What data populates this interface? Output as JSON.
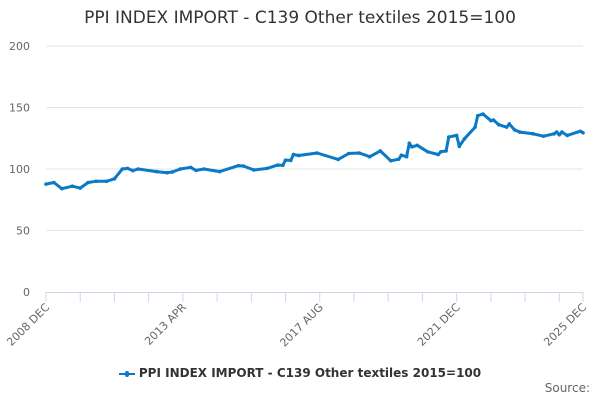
{
  "chart_data": {
    "type": "line",
    "title": "PPI INDEX IMPORT - C139 Other textiles 2015=100",
    "xlabel": "",
    "ylabel": "",
    "ylim": [
      0,
      200
    ],
    "yticks": [
      0,
      50,
      100,
      150,
      200
    ],
    "xrange": [
      "2008-12",
      "2025-12"
    ],
    "xtick_labels": [
      "2008 DEC",
      "2013 APR",
      "2017 AUG",
      "2021 DEC",
      "2025 DEC"
    ],
    "grid": "horizontal",
    "legend_position": "bottom",
    "color": "#0a7ac6",
    "series": [
      {
        "name": "PPI INDEX IMPORT - C139 Other textiles 2015=100",
        "points": [
          [
            "2008-12",
            87.7
          ],
          [
            "2009-03",
            89
          ],
          [
            "2009-06",
            84
          ],
          [
            "2009-10",
            86
          ],
          [
            "2010-01",
            84.5
          ],
          [
            "2010-04",
            89
          ],
          [
            "2010-07",
            90
          ],
          [
            "2010-11",
            90
          ],
          [
            "2011-02",
            92
          ],
          [
            "2011-05",
            100
          ],
          [
            "2011-07",
            100.5
          ],
          [
            "2011-09",
            98.7
          ],
          [
            "2011-11",
            100
          ],
          [
            "2012-06",
            97.9
          ],
          [
            "2012-10",
            97
          ],
          [
            "2012-12",
            97.6
          ],
          [
            "2013-03",
            100
          ],
          [
            "2013-07",
            101.3
          ],
          [
            "2013-09",
            98.9
          ],
          [
            "2013-12",
            100
          ],
          [
            "2014-06",
            97.9
          ],
          [
            "2015-01",
            102.7
          ],
          [
            "2015-03",
            102.4
          ],
          [
            "2015-07",
            99.2
          ],
          [
            "2015-12",
            100.5
          ],
          [
            "2016-04",
            103.2
          ],
          [
            "2016-06",
            103
          ],
          [
            "2016-07",
            107.2
          ],
          [
            "2016-09",
            107
          ],
          [
            "2016-10",
            111.8
          ],
          [
            "2016-12",
            111
          ],
          [
            "2017-07",
            113
          ],
          [
            "2018-03",
            107.8
          ],
          [
            "2018-07",
            112.6
          ],
          [
            "2018-11",
            113
          ],
          [
            "2019-03",
            110
          ],
          [
            "2019-07",
            114.7
          ],
          [
            "2019-11",
            106.7
          ],
          [
            "2020-02",
            108
          ],
          [
            "2020-03",
            111.2
          ],
          [
            "2020-05",
            110
          ],
          [
            "2020-06",
            121
          ],
          [
            "2020-07",
            118
          ],
          [
            "2020-09",
            119.3
          ],
          [
            "2021-01",
            114
          ],
          [
            "2021-05",
            111.8
          ],
          [
            "2021-06",
            114
          ],
          [
            "2021-08",
            114.7
          ],
          [
            "2021-09",
            126
          ],
          [
            "2021-12",
            127.3
          ],
          [
            "2022-01",
            118.4
          ],
          [
            "2022-03",
            124.6
          ],
          [
            "2022-07",
            134
          ],
          [
            "2022-08",
            143.3
          ],
          [
            "2022-10",
            144.7
          ],
          [
            "2023-01",
            139.3
          ],
          [
            "2023-02",
            139.8
          ],
          [
            "2023-04",
            136
          ],
          [
            "2023-07",
            134
          ],
          [
            "2023-08",
            136.6
          ],
          [
            "2023-10",
            131.8
          ],
          [
            "2023-12",
            130
          ],
          [
            "2024-05",
            128.6
          ],
          [
            "2024-09",
            126.7
          ],
          [
            "2025-01",
            128.6
          ],
          [
            "2025-02",
            130
          ],
          [
            "2025-03",
            127.8
          ],
          [
            "2025-04",
            130
          ],
          [
            "2025-06",
            127.3
          ],
          [
            "2025-11",
            130.7
          ],
          [
            "2025-12",
            129.4
          ]
        ]
      }
    ]
  },
  "legend_label": "PPI INDEX IMPORT - C139 Other textiles 2015=100",
  "source_label": "Source:"
}
